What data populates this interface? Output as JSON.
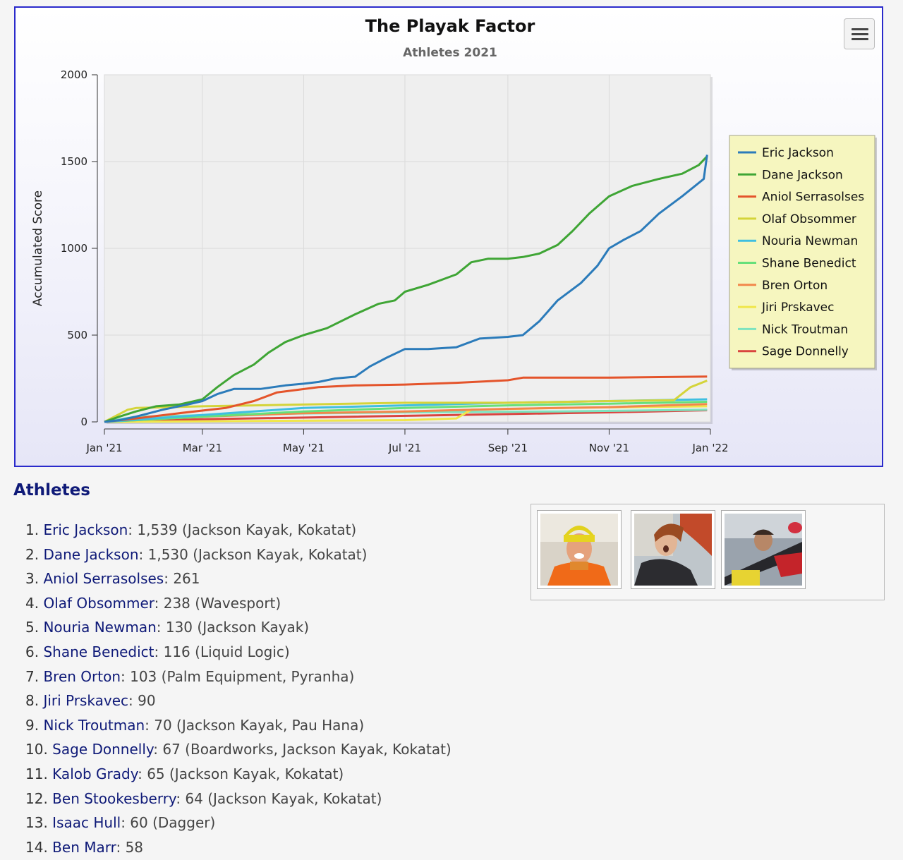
{
  "chart_data": {
    "type": "line",
    "title": "The Playak Factor",
    "subtitle": "Athletes 2021",
    "ylabel": "Accumulated Score",
    "xlabel": "",
    "ylim": [
      0,
      2000
    ],
    "y_ticks": [
      0,
      500,
      1000,
      1500,
      2000
    ],
    "x_range": [
      "2021-01-01",
      "2022-01-01"
    ],
    "x_ticks": [
      {
        "date": "2021-01-01",
        "label": "Jan '21"
      },
      {
        "date": "2021-03-01",
        "label": "Mar '21"
      },
      {
        "date": "2021-05-01",
        "label": "May '21"
      },
      {
        "date": "2021-07-01",
        "label": "Jul '21"
      },
      {
        "date": "2021-09-01",
        "label": "Sep '21"
      },
      {
        "date": "2021-11-01",
        "label": "Nov '21"
      },
      {
        "date": "2022-01-01",
        "label": "Jan '22"
      }
    ],
    "grid": true,
    "legend_position": "right",
    "series": [
      {
        "name": "Eric Jackson",
        "color": "#2b7bba",
        "points": [
          [
            "2021-01-01",
            0
          ],
          [
            "2021-01-10",
            10
          ],
          [
            "2021-01-20",
            30
          ],
          [
            "2021-02-05",
            70
          ],
          [
            "2021-02-20",
            100
          ],
          [
            "2021-03-01",
            120
          ],
          [
            "2021-03-10",
            160
          ],
          [
            "2021-03-20",
            190
          ],
          [
            "2021-04-05",
            190
          ],
          [
            "2021-04-20",
            210
          ],
          [
            "2021-05-01",
            220
          ],
          [
            "2021-05-10",
            230
          ],
          [
            "2021-05-20",
            250
          ],
          [
            "2021-06-01",
            260
          ],
          [
            "2021-06-10",
            320
          ],
          [
            "2021-06-20",
            370
          ],
          [
            "2021-07-01",
            420
          ],
          [
            "2021-07-15",
            420
          ],
          [
            "2021-08-01",
            430
          ],
          [
            "2021-08-15",
            480
          ],
          [
            "2021-09-01",
            490
          ],
          [
            "2021-09-10",
            500
          ],
          [
            "2021-09-20",
            580
          ],
          [
            "2021-10-01",
            700
          ],
          [
            "2021-10-15",
            800
          ],
          [
            "2021-10-25",
            900
          ],
          [
            "2021-11-01",
            1000
          ],
          [
            "2021-11-10",
            1050
          ],
          [
            "2021-11-20",
            1100
          ],
          [
            "2021-12-01",
            1200
          ],
          [
            "2021-12-15",
            1300
          ],
          [
            "2021-12-28",
            1400
          ],
          [
            "2021-12-30",
            1539
          ]
        ]
      },
      {
        "name": "Dane Jackson",
        "color": "#3fa535",
        "points": [
          [
            "2021-01-01",
            0
          ],
          [
            "2021-01-10",
            30
          ],
          [
            "2021-01-20",
            60
          ],
          [
            "2021-02-01",
            90
          ],
          [
            "2021-02-15",
            100
          ],
          [
            "2021-03-01",
            130
          ],
          [
            "2021-03-10",
            200
          ],
          [
            "2021-03-20",
            270
          ],
          [
            "2021-04-01",
            330
          ],
          [
            "2021-04-10",
            400
          ],
          [
            "2021-04-20",
            460
          ],
          [
            "2021-05-01",
            500
          ],
          [
            "2021-05-15",
            540
          ],
          [
            "2021-06-01",
            620
          ],
          [
            "2021-06-15",
            680
          ],
          [
            "2021-06-25",
            700
          ],
          [
            "2021-07-01",
            750
          ],
          [
            "2021-07-15",
            790
          ],
          [
            "2021-08-01",
            850
          ],
          [
            "2021-08-10",
            920
          ],
          [
            "2021-08-20",
            940
          ],
          [
            "2021-09-01",
            940
          ],
          [
            "2021-09-10",
            950
          ],
          [
            "2021-09-20",
            970
          ],
          [
            "2021-10-01",
            1020
          ],
          [
            "2021-10-10",
            1100
          ],
          [
            "2021-10-20",
            1200
          ],
          [
            "2021-11-01",
            1300
          ],
          [
            "2021-11-15",
            1360
          ],
          [
            "2021-12-01",
            1400
          ],
          [
            "2021-12-15",
            1430
          ],
          [
            "2021-12-25",
            1480
          ],
          [
            "2021-12-30",
            1530
          ]
        ]
      },
      {
        "name": "Aniol Serrasolses",
        "color": "#e4542b",
        "points": [
          [
            "2021-01-01",
            0
          ],
          [
            "2021-01-20",
            20
          ],
          [
            "2021-02-15",
            50
          ],
          [
            "2021-03-15",
            80
          ],
          [
            "2021-04-01",
            120
          ],
          [
            "2021-04-15",
            170
          ],
          [
            "2021-05-10",
            200
          ],
          [
            "2021-06-01",
            210
          ],
          [
            "2021-07-01",
            215
          ],
          [
            "2021-08-01",
            225
          ],
          [
            "2021-09-01",
            240
          ],
          [
            "2021-09-10",
            255
          ],
          [
            "2021-10-01",
            255
          ],
          [
            "2021-11-01",
            255
          ],
          [
            "2021-12-01",
            258
          ],
          [
            "2021-12-30",
            261
          ]
        ]
      },
      {
        "name": "Olaf Obsommer",
        "color": "#d4d43a",
        "points": [
          [
            "2021-01-01",
            0
          ],
          [
            "2021-01-15",
            70
          ],
          [
            "2021-01-20",
            80
          ],
          [
            "2021-03-01",
            90
          ],
          [
            "2021-05-01",
            100
          ],
          [
            "2021-07-01",
            110
          ],
          [
            "2021-09-01",
            110
          ],
          [
            "2021-11-01",
            120
          ],
          [
            "2021-12-10",
            125
          ],
          [
            "2021-12-20",
            200
          ],
          [
            "2021-12-30",
            238
          ]
        ]
      },
      {
        "name": "Nouria Newman",
        "color": "#3fbfe0",
        "points": [
          [
            "2021-01-01",
            0
          ],
          [
            "2021-03-01",
            40
          ],
          [
            "2021-05-01",
            80
          ],
          [
            "2021-07-01",
            95
          ],
          [
            "2021-09-01",
            110
          ],
          [
            "2021-11-01",
            120
          ],
          [
            "2021-12-30",
            130
          ]
        ]
      },
      {
        "name": "Shane Benedict",
        "color": "#66e07a",
        "points": [
          [
            "2021-01-01",
            0
          ],
          [
            "2021-03-01",
            30
          ],
          [
            "2021-05-01",
            60
          ],
          [
            "2021-07-01",
            80
          ],
          [
            "2021-09-01",
            95
          ],
          [
            "2021-11-01",
            105
          ],
          [
            "2021-12-30",
            116
          ]
        ]
      },
      {
        "name": "Bren Orton",
        "color": "#f2874b",
        "points": [
          [
            "2021-01-01",
            0
          ],
          [
            "2021-03-01",
            30
          ],
          [
            "2021-05-01",
            50
          ],
          [
            "2021-07-01",
            60
          ],
          [
            "2021-09-01",
            75
          ],
          [
            "2021-11-01",
            85
          ],
          [
            "2021-12-30",
            103
          ]
        ]
      },
      {
        "name": "Jiri Prskavec",
        "color": "#f0e64b",
        "points": [
          [
            "2021-01-01",
            0
          ],
          [
            "2021-07-01",
            10
          ],
          [
            "2021-08-01",
            20
          ],
          [
            "2021-08-10",
            70
          ],
          [
            "2021-10-01",
            80
          ],
          [
            "2021-12-30",
            90
          ]
        ]
      },
      {
        "name": "Nick Troutman",
        "color": "#7de3bf",
        "points": [
          [
            "2021-01-01",
            0
          ],
          [
            "2021-01-20",
            30
          ],
          [
            "2021-04-01",
            45
          ],
          [
            "2021-07-01",
            55
          ],
          [
            "2021-10-01",
            60
          ],
          [
            "2021-12-30",
            70
          ]
        ]
      },
      {
        "name": "Sage Donnelly",
        "color": "#d9443f",
        "points": [
          [
            "2021-01-01",
            0
          ],
          [
            "2021-03-01",
            15
          ],
          [
            "2021-06-01",
            30
          ],
          [
            "2021-09-01",
            45
          ],
          [
            "2021-11-01",
            55
          ],
          [
            "2021-12-30",
            67
          ]
        ]
      }
    ]
  },
  "menu": {
    "icon": "hamburger-icon"
  },
  "athletes": {
    "heading": "Athletes",
    "items": [
      {
        "num": "1.",
        "name": "Eric Jackson",
        "rest": ": 1,539 (Jackson Kayak, Kokatat)"
      },
      {
        "num": "2.",
        "name": "Dane Jackson",
        "rest": ": 1,530 (Jackson Kayak, Kokatat)"
      },
      {
        "num": "3.",
        "name": "Aniol Serrasolses",
        "rest": ": 261"
      },
      {
        "num": "4.",
        "name": "Olaf Obsommer",
        "rest": ": 238 (Wavesport)"
      },
      {
        "num": "5.",
        "name": "Nouria Newman",
        "rest": ": 130 (Jackson Kayak)"
      },
      {
        "num": "6.",
        "name": "Shane Benedict",
        "rest": ": 116 (Liquid Logic)"
      },
      {
        "num": "7.",
        "name": "Bren Orton",
        "rest": ": 103 (Palm Equipment, Pyranha)"
      },
      {
        "num": "8.",
        "name": "Jiri Prskavec",
        "rest": ": 90"
      },
      {
        "num": "9.",
        "name": "Nick Troutman",
        "rest": ": 70 (Jackson Kayak, Pau Hana)"
      },
      {
        "num": "10.",
        "name": "Sage Donnelly",
        "rest": ": 67 (Boardworks, Jackson Kayak, Kokatat)"
      },
      {
        "num": "11.",
        "name": "Kalob Grady",
        "rest": ": 65 (Jackson Kayak, Kokatat)"
      },
      {
        "num": "12.",
        "name": "Ben Stookesberry",
        "rest": ": 64 (Jackson Kayak, Kokatat)"
      },
      {
        "num": "13.",
        "name": "Isaac Hull",
        "rest": ": 60 (Dagger)"
      },
      {
        "num": "14.",
        "name": "Ben Marr",
        "rest": ": 58"
      }
    ]
  }
}
